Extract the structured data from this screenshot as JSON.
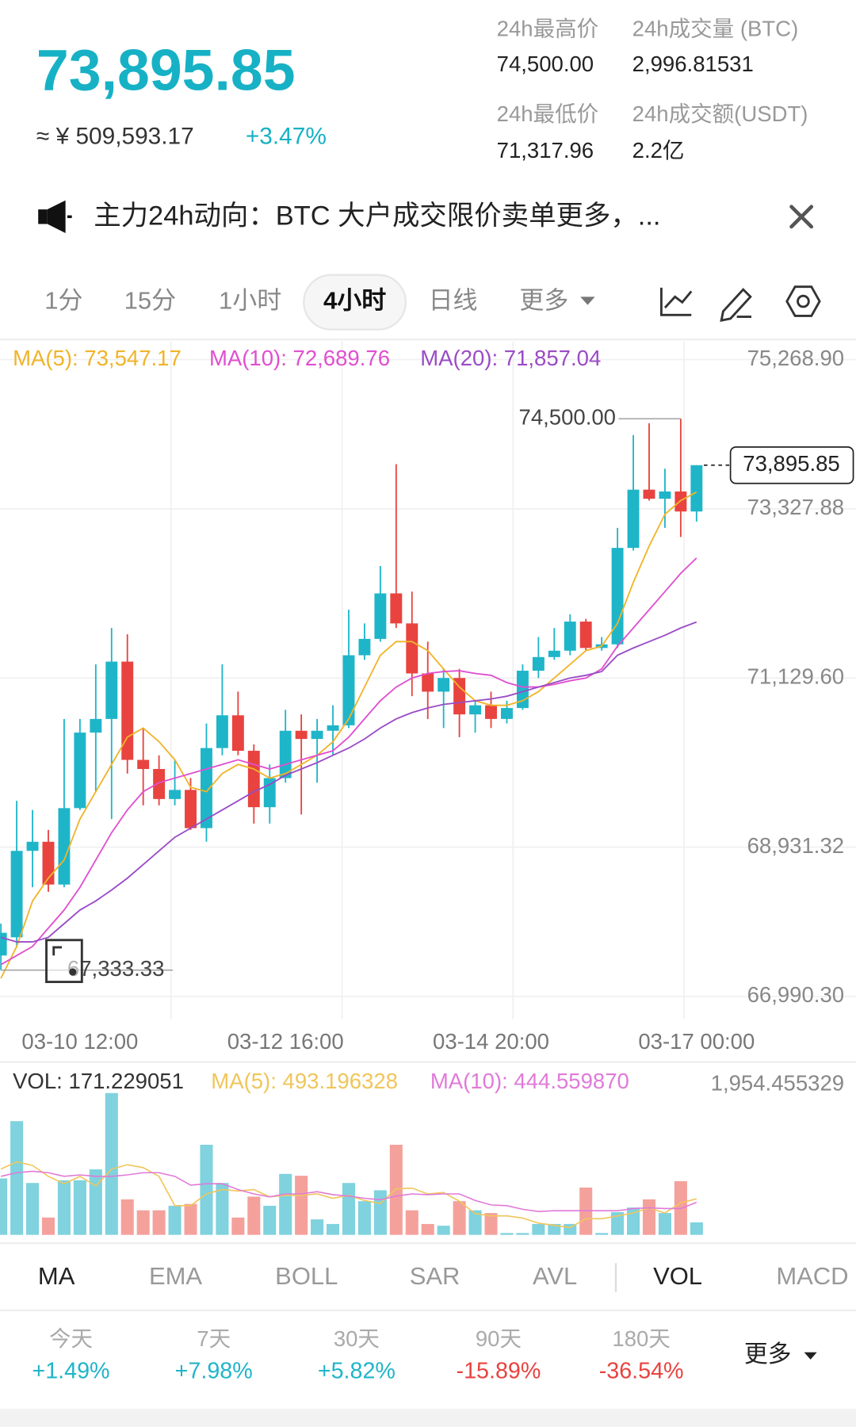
{
  "header": {
    "price": "73,895.85",
    "cny": "≈ ¥ 509,593.17",
    "change": "+3.47%",
    "stats": [
      {
        "label": "24h最高价",
        "value": "74,500.00"
      },
      {
        "label": "24h成交量 (BTC)",
        "value": "2,996.81531"
      },
      {
        "label": "24h最低价",
        "value": "71,317.96"
      },
      {
        "label": "24h成交额(USDT)",
        "value": "2.2亿"
      }
    ]
  },
  "notice": "主力24h动向：BTC 大户成交限价卖单更多，...",
  "timeframes": {
    "items": [
      "1分",
      "15分",
      "1小时",
      "4小时",
      "日线",
      "更多"
    ],
    "active": 3
  },
  "chart_data": [
    {
      "type": "candlestick",
      "categories": [
        null,
        null,
        null,
        null,
        null,
        "03-10 12:00",
        null,
        null,
        null,
        null,
        null,
        null,
        null,
        null,
        null,
        null,
        null,
        null,
        "03-12 16:00",
        null,
        null,
        null,
        null,
        null,
        null,
        null,
        null,
        null,
        null,
        null,
        null,
        "03-14 20:00",
        null,
        null,
        null,
        null,
        null,
        null,
        null,
        null,
        null,
        null,
        null,
        null,
        "03-17 00:00"
      ],
      "open": [
        67522.9,
        67759.4,
        68882.9,
        69001.1,
        68445.3,
        69438.7,
        70420.2,
        70597.6,
        71342.7,
        70065.5,
        69947.2,
        69556.9,
        69675.2,
        69178.5,
        70219.2,
        70644.9,
        70183.7,
        69450.5,
        69828.9,
        70443.9,
        70337.5,
        70443.9,
        70514.8,
        71425.4,
        71638.3,
        72229.6,
        71839.4,
        71188.9,
        70952.4,
        71129.8,
        70656.8,
        70775.0,
        70597.6,
        70739.5,
        71224.4,
        71401.8,
        71484.6,
        71863.0,
        71520.1,
        71567.4,
        72820.9,
        73577.8,
        73459.5,
        73554.1,
        73294.0
      ],
      "high": [
        67936.8,
        69533.3,
        69415.0,
        69154.9,
        70597.6,
        70597.6,
        71307.2,
        71780.2,
        71697.4,
        70479.4,
        70124.6,
        70065.5,
        69828.9,
        70538.5,
        71307.2,
        70952.4,
        70266.5,
        70006.3,
        70715.9,
        70656.8,
        70597.6,
        70775.0,
        72016.7,
        71839.4,
        72584.4,
        73908.9,
        72253.3,
        71602.8,
        71248.1,
        71248.1,
        70834.1,
        70952.4,
        70834.1,
        71307.2,
        71662.0,
        71780.2,
        71957.6,
        71898.5,
        71662.0,
        73081.1,
        74287.3,
        74441.1,
        73849.8,
        74500.0,
        73895.85
      ],
      "low": [
        67333.33,
        67641.1,
        68409.8,
        68350.7,
        68409.8,
        69415.0,
        69651.5,
        69296.8,
        69888.1,
        69474.2,
        69474.2,
        69474.2,
        69154.9,
        69001.1,
        70124.6,
        70124.6,
        69237.6,
        69237.6,
        69769.8,
        69355.9,
        69769.8,
        70124.6,
        70479.4,
        71366.3,
        71602.8,
        71780.2,
        70893.3,
        70597.6,
        70479.4,
        70361.1,
        70420.2,
        70479.4,
        70538.5,
        70715.9,
        71129.8,
        71366.3,
        71425.4,
        71484.6,
        71484.6,
        71520.1,
        72785.4,
        73435.9,
        73081.1,
        72962.8,
        73163.9
      ],
      "close": [
        67818.5,
        68882.9,
        69001.1,
        68445.3,
        69438.7,
        70420.2,
        70597.6,
        71342.7,
        70065.5,
        69947.2,
        69556.9,
        69675.2,
        69178.5,
        70219.2,
        70644.9,
        70183.7,
        69450.5,
        69828.9,
        70443.9,
        70337.5,
        70443.9,
        70514.8,
        71425.4,
        71638.3,
        72229.6,
        71839.4,
        71188.9,
        70952.4,
        71129.8,
        70656.8,
        70775.0,
        70597.6,
        70739.5,
        71224.4,
        71401.8,
        71484.6,
        71863.0,
        71520.1,
        71567.4,
        72820.9,
        73577.8,
        73459.5,
        73554.1,
        73294.0,
        73895.85
      ],
      "up_color": "#1fb5c9",
      "down_color": "#e8433f",
      "series": [
        {
          "name": "MA(5): 73,547.17",
          "color": "#f0b429",
          "values": [
            67227,
            67641,
            68232,
            68528,
            68764,
            69297,
            69652,
            70006,
            70361,
            70479,
            70302,
            70066,
            69711,
            69652,
            69888,
            70006,
            69947,
            69829,
            69888,
            70006,
            70125,
            70302,
            70598,
            71012,
            71425,
            71603,
            71603,
            71485,
            71248,
            71012,
            70834,
            70775,
            70775,
            70834,
            70952,
            71130,
            71307,
            71485,
            71544,
            71839,
            72372,
            72845,
            73258,
            73436,
            73547.17
          ]
        },
        {
          "name": "MA(10): 72,689.76",
          "color": "#e04fd0",
          "values": [
            67405,
            67523,
            67641,
            67878,
            68114,
            68410,
            68764,
            69119,
            69415,
            69652,
            69770,
            69829,
            69888,
            69947,
            70006,
            70066,
            70006,
            69947,
            70006,
            70066,
            70125,
            70184,
            70361,
            70598,
            70834,
            71012,
            71130,
            71189,
            71213,
            71224,
            71189,
            71165,
            71071,
            71012,
            71012,
            71047,
            71094,
            71130,
            71248,
            71544,
            71780,
            72017,
            72253,
            72490,
            72689.76
          ]
        },
        {
          "name": "MA(20): 71,857.04",
          "color": "#9a4bc6",
          "values": [
            67759,
            67700,
            67700,
            67759,
            67937,
            68114,
            68232,
            68374,
            68528,
            68705,
            68883,
            69060,
            69178,
            69297,
            69415,
            69533,
            69652,
            69746,
            69865,
            69947,
            70030,
            70125,
            70219,
            70337,
            70479,
            70598,
            70680,
            70740,
            70787,
            70810,
            70834,
            70858,
            70893,
            70952,
            71012,
            71071,
            71130,
            71165,
            71213,
            71425,
            71520,
            71603,
            71686,
            71780,
            71857.04
          ]
        }
      ],
      "ylim": [
        66990.3,
        75268.9
      ],
      "yticks": [
        {
          "value": 66990.3,
          "label": "66,990.30"
        },
        {
          "value": 68931.32,
          "label": "68,931.32"
        },
        {
          "value": 71129.6,
          "label": "71,129.60"
        },
        {
          "value": 73327.88,
          "label": "73,327.88"
        },
        {
          "value": 75268.9,
          "label": "75,268.90"
        }
      ],
      "grid": true,
      "annotations": {
        "high_label": "74,500.00",
        "low_label": "67,333.33",
        "last_label": "73,895.85"
      }
    },
    {
      "type": "bar",
      "series": [
        {
          "name": "VOL: 171.229051",
          "up_color": "#7fd2de",
          "down_color": "#f4a19c",
          "values": [
            772,
            1556,
            710,
            237,
            747,
            747,
            896,
            1940,
            486,
            336,
            336,
            398,
            423,
            1233,
            710,
            237,
            523,
            398,
            834,
            809,
            212,
            149,
            710,
            461,
            610,
            1233,
            336,
            149,
            125,
            461,
            336,
            299,
            25,
            25,
            149,
            149,
            149,
            647,
            25,
            311,
            374,
            486,
            299,
            735,
            171.229051
          ]
        },
        {
          "name": "MA(5): 493.196328",
          "color": "#f0c65a",
          "values": [
            900,
            1000,
            950,
            800,
            700,
            800,
            670,
            900,
            960,
            920,
            800,
            400,
            400,
            560,
            620,
            600,
            620,
            520,
            540,
            540,
            560,
            500,
            540,
            470,
            430,
            630,
            640,
            560,
            580,
            460,
            290,
            260,
            260,
            230,
            160,
            130,
            100,
            220,
            220,
            260,
            300,
            370,
            300,
            440,
            493.196328
          ]
        },
        {
          "name": "MA(10): 444.559870",
          "color": "#e07ad8",
          "values": [
            800,
            850,
            870,
            850,
            800,
            820,
            800,
            800,
            820,
            850,
            850,
            800,
            680,
            700,
            700,
            620,
            560,
            520,
            560,
            560,
            590,
            550,
            530,
            500,
            480,
            530,
            560,
            550,
            560,
            560,
            470,
            410,
            400,
            350,
            320,
            330,
            330,
            330,
            330,
            330,
            360,
            370,
            360,
            360,
            444.55987
          ]
        }
      ],
      "ylim": [
        0,
        1954.455329
      ],
      "yticks": [
        {
          "value": 1954.455329,
          "label": "1,954.455329"
        }
      ]
    }
  ],
  "indicators": {
    "items": [
      "MA",
      "EMA",
      "BOLL",
      "SAR",
      "AVL",
      "VOL",
      "MACD"
    ],
    "active": [
      0,
      5
    ]
  },
  "performance": {
    "items": [
      {
        "label": "今天",
        "value": "+1.49%",
        "color": "#1fb5c9"
      },
      {
        "label": "7天",
        "value": "+7.98%",
        "color": "#1fb5c9"
      },
      {
        "label": "30天",
        "value": "+5.82%",
        "color": "#1fb5c9"
      },
      {
        "label": "90天",
        "value": "-15.89%",
        "color": "#e8433f"
      },
      {
        "label": "180天",
        "value": "-36.54%",
        "color": "#e8433f"
      }
    ],
    "more": "更多"
  }
}
